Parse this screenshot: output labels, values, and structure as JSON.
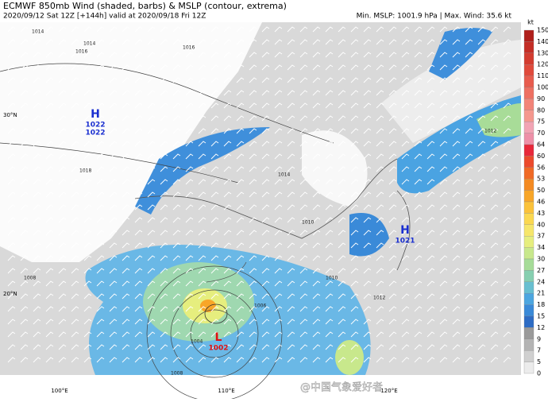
{
  "header": {
    "title": "ECMWF 850mb Wind (shaded, barbs) & MSLP (contour, extrema)",
    "subtitle": "2020/09/12 Sat 12Z [+144h] valid at 2020/09/18 Fri 12Z",
    "stats": "Min. MSLP: 1001.9 hPa | Max. Wind: 35.6 kt"
  },
  "colorbar": {
    "unit": "kt",
    "levels": [
      150,
      140,
      130,
      120,
      110,
      100,
      90,
      80,
      75,
      70,
      64,
      60,
      56,
      53,
      50,
      46,
      43,
      40,
      37,
      34,
      30,
      27,
      24,
      21,
      18,
      15,
      12,
      9,
      7,
      5,
      0
    ],
    "colors": [
      "#b0201c",
      "#c42e26",
      "#d33c30",
      "#e04a3c",
      "#e85c4e",
      "#ee7062",
      "#f28478",
      "#f5988e",
      "#f2a4b4",
      "#ee90a8",
      "#e8283a",
      "#ec4a2c",
      "#f06a26",
      "#f48a22",
      "#f8a628",
      "#fbc23a",
      "#fbd850",
      "#f6e66a",
      "#e6ee7e",
      "#c8e88c",
      "#a6dc98",
      "#86cfb0",
      "#68bfd0",
      "#4ca6e0",
      "#3a8ad8",
      "#2e6cc4",
      "#9a9a9a",
      "#b4b4b4",
      "#d0d0d0",
      "#ececec"
    ]
  },
  "axes": {
    "lon_labels": [
      "100°E",
      "110°E",
      "120°E"
    ],
    "lat_labels": [
      "30°N",
      "20°N"
    ]
  },
  "extrema": [
    {
      "symbol": "H",
      "values": [
        "1022",
        "1022"
      ]
    },
    {
      "symbol": "H",
      "values": [
        "1021"
      ]
    },
    {
      "symbol": "L",
      "values": [
        "1002"
      ]
    }
  ],
  "contour_labels": [
    "1014",
    "1016",
    "1016",
    "1014",
    "1018",
    "1014",
    "1012",
    "1010",
    "1012",
    "1008",
    "1006",
    "1004",
    "1008",
    "1010"
  ],
  "watermark": "@中国气象爱好者"
}
